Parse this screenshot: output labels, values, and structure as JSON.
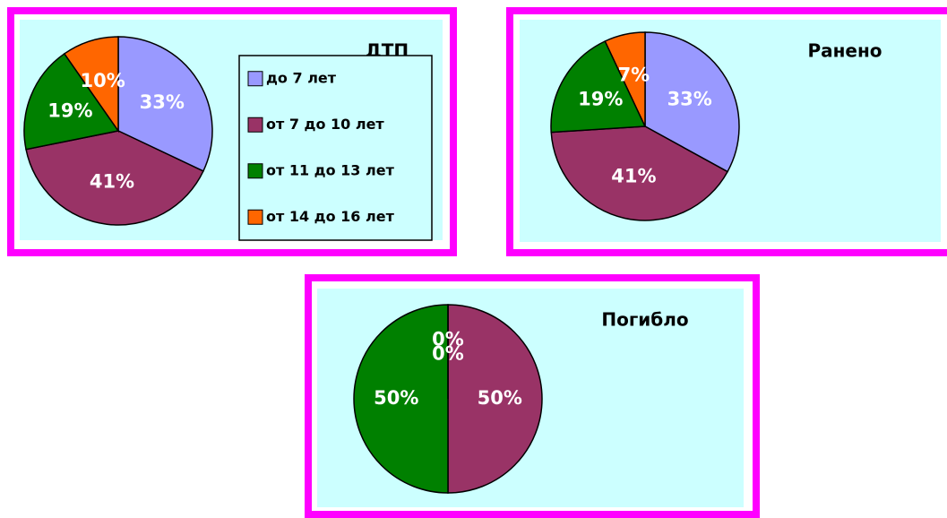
{
  "chart_data": [
    {
      "type": "pie",
      "title": "ДТП",
      "categories": [
        "до 7 лет",
        "от 7 до 10 лет",
        "от 11 до 13 лет",
        "от 14 до 16 лет"
      ],
      "values": [
        33,
        41,
        19,
        10
      ],
      "value_labels": [
        "33%",
        "41%",
        "19%",
        "10%"
      ],
      "colors": [
        "#9999ff",
        "#993366",
        "#008000",
        "#ff6600"
      ],
      "legend": "right"
    },
    {
      "type": "pie",
      "title": "Ранено",
      "values": [
        33,
        41,
        19,
        7
      ],
      "value_labels": [
        "33%",
        "41%",
        "19%",
        "7%"
      ],
      "colors": [
        "#9999ff",
        "#993366",
        "#008000",
        "#ff6600"
      ]
    },
    {
      "type": "pie",
      "title": "Погибло",
      "values": [
        0,
        50,
        50,
        0
      ],
      "value_labels": [
        "0%",
        "50%",
        "50%",
        "0%"
      ],
      "colors": [
        "#9999ff",
        "#993366",
        "#008000",
        "#ff6600"
      ]
    }
  ]
}
